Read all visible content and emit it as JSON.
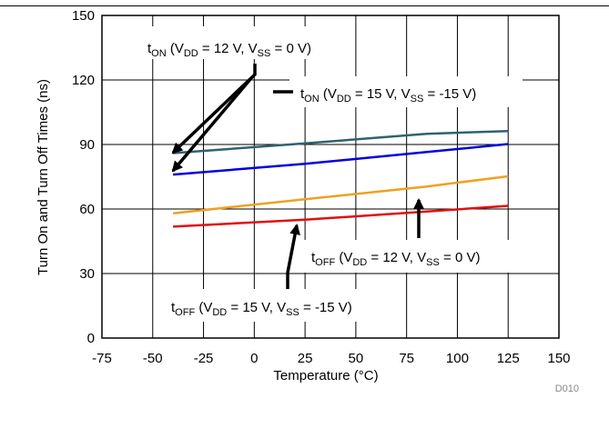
{
  "chart_data": {
    "type": "line",
    "title": "",
    "xlabel": "Temperature (°C)",
    "ylabel": "Turn On and Turn Off Times (ns)",
    "xlim": [
      -75,
      150
    ],
    "ylim": [
      0,
      150
    ],
    "xticks": [
      -75,
      -50,
      -25,
      0,
      25,
      50,
      75,
      100,
      125,
      150
    ],
    "yticks": [
      0,
      30,
      60,
      90,
      120,
      150
    ],
    "grid": true,
    "series": [
      {
        "id": "ton-12",
        "color": "#2f6270",
        "x": [
          -40,
          25,
          85,
          125
        ],
        "y": [
          86,
          90.5,
          95,
          96.2
        ]
      },
      {
        "id": "ton-15",
        "color": "#0000dd",
        "x": [
          -40,
          25,
          85,
          125
        ],
        "y": [
          76,
          81,
          86.5,
          90.2
        ]
      },
      {
        "id": "toff-12",
        "color": "#f0a020",
        "x": [
          -40,
          25,
          85,
          125
        ],
        "y": [
          58,
          64.5,
          70.5,
          75.2
        ]
      },
      {
        "id": "toff-15",
        "color": "#e01010",
        "x": [
          -40,
          25,
          85,
          125
        ],
        "y": [
          51.8,
          55,
          58.8,
          61.5
        ]
      }
    ],
    "annotations": [
      {
        "id": "ann-ton-12",
        "base": "t",
        "sub1": "ON",
        "p1": " (V",
        "sub2": "DD",
        "p2": " = 12 V, V",
        "sub3": "SS",
        "p3": " = 0 V)"
      },
      {
        "id": "ann-ton-15",
        "base": "t",
        "sub1": "ON",
        "p1": " (V",
        "sub2": "DD",
        "p2": " = 15 V, V",
        "sub3": "SS",
        "p3": " = -15 V)"
      },
      {
        "id": "ann-toff-12",
        "base": "t",
        "sub1": "OFF",
        "p1": " (V",
        "sub2": "DD",
        "p2": " = 12 V, V",
        "sub3": "SS",
        "p3": " = 0 V)"
      },
      {
        "id": "ann-toff-15",
        "base": "t",
        "sub1": "OFF",
        "p1": " (V",
        "sub2": "DD",
        "p2": " = 15 V, V",
        "sub3": "SS",
        "p3": " = -15 V)"
      }
    ],
    "figure_code": "D010"
  }
}
